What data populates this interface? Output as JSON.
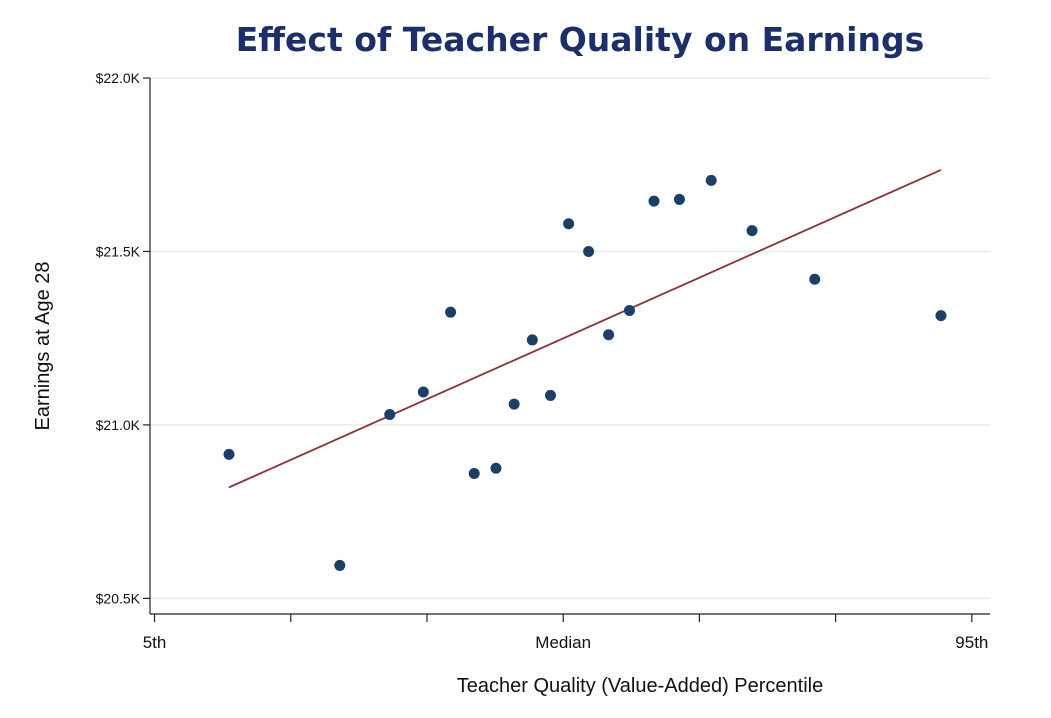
{
  "chart_data": {
    "type": "scatter",
    "title": "Effect of Teacher Quality on Earnings",
    "xlabel": "Teacher Quality (Value-Added) Percentile",
    "ylabel": "Earnings at Age 28",
    "xlim": [
      5,
      95
    ],
    "ylim": [
      20500,
      22000
    ],
    "xlim_display": [
      4.5,
      97
    ],
    "ylim_display": [
      20455,
      22000
    ],
    "grid": true,
    "y_ticks": [
      {
        "value": 20500,
        "label": "$20.5K"
      },
      {
        "value": 21000,
        "label": "$21.0K"
      },
      {
        "value": 21500,
        "label": "$21.5K"
      },
      {
        "value": 22000,
        "label": "$22.0K"
      }
    ],
    "x_ticks": [
      {
        "value": 5,
        "label": "5th"
      },
      {
        "value": 20,
        "label": ""
      },
      {
        "value": 35,
        "label": ""
      },
      {
        "value": 50,
        "label": "Median"
      },
      {
        "value": 65,
        "label": ""
      },
      {
        "value": 80,
        "label": ""
      },
      {
        "value": 95,
        "label": "95th"
      }
    ],
    "points": [
      {
        "x": 13.2,
        "y": 20915
      },
      {
        "x": 25.4,
        "y": 20595
      },
      {
        "x": 30.9,
        "y": 21030
      },
      {
        "x": 34.6,
        "y": 21095
      },
      {
        "x": 37.6,
        "y": 21325
      },
      {
        "x": 40.2,
        "y": 20860
      },
      {
        "x": 42.6,
        "y": 20875
      },
      {
        "x": 44.6,
        "y": 21060
      },
      {
        "x": 46.6,
        "y": 21245
      },
      {
        "x": 48.6,
        "y": 21085
      },
      {
        "x": 50.6,
        "y": 21580
      },
      {
        "x": 52.8,
        "y": 21500
      },
      {
        "x": 55.0,
        "y": 21260
      },
      {
        "x": 57.3,
        "y": 21330
      },
      {
        "x": 60.0,
        "y": 21645
      },
      {
        "x": 62.8,
        "y": 21650
      },
      {
        "x": 66.3,
        "y": 21705
      },
      {
        "x": 70.8,
        "y": 21560
      },
      {
        "x": 77.7,
        "y": 21420
      },
      {
        "x": 91.6,
        "y": 21315
      }
    ],
    "fit_line": {
      "x": [
        13.2,
        91.6
      ],
      "y": [
        20820,
        21735
      ]
    },
    "colors": {
      "points": "#1b3f66",
      "fit_line": "#8b3438",
      "title": "#1d2f6b",
      "grid": "#e4ecf1"
    }
  }
}
